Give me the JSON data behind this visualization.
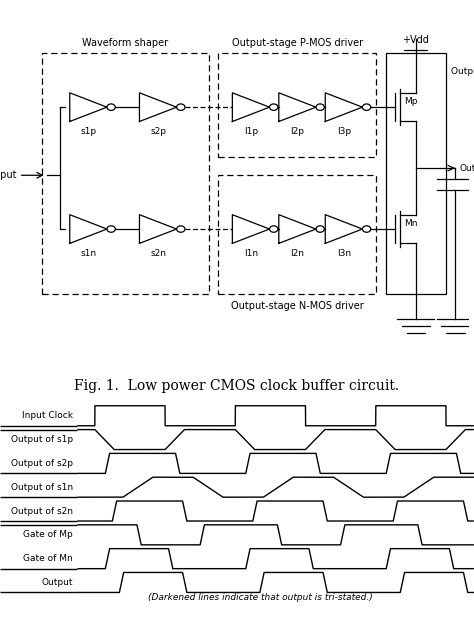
{
  "fig_title": "Fig. 1.  Low power CMOS clock buffer circuit.",
  "caption": "(Darkened lines indicate that output is tri-stated.)",
  "waveform_labels": [
    "Input Clock",
    "Output of s1p",
    "Output of s2p",
    "Output of s1n",
    "Output of s2n",
    "Gate of Mp",
    "Gate of Mn",
    "Output"
  ],
  "background_color": "#ffffff",
  "label_fontsize": 6.5,
  "caption_fontsize": 6.5,
  "fig_title_fontsize": 10
}
